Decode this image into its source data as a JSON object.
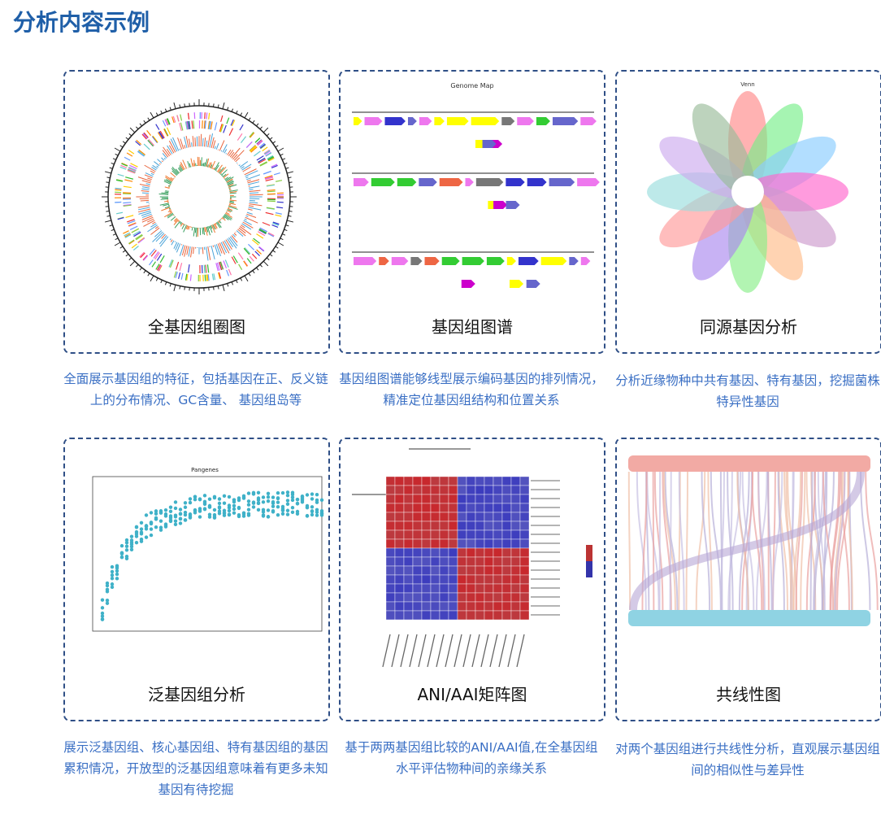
{
  "header": {
    "title": "分析内容示例"
  },
  "cards": [
    {
      "label": "全基因组圈图",
      "description": "全面展示基因组的特征，包括基因在正、反义链上的分布情况、GC含量、 基因组岛等"
    },
    {
      "label": "基因组图谱",
      "figure_title": "Genome Map",
      "description": "基因组图谱能够线型展示编码基因的排列情况，精准定位基因组结构和位置关系"
    },
    {
      "label": "同源基因分析",
      "figure_title": "Venn",
      "description": "分析近缘物种中共有基因、特有基因，挖掘菌株特异性基因"
    },
    {
      "label": "泛基因组分析",
      "figure_title": "Pangenes",
      "description": "展示泛基因组、核心基因组、特有基因组的基因累积情况，开放型的泛基因组意味着有更多未知基因有待挖掘"
    },
    {
      "label": "ANI/AAI矩阵图",
      "description": "基于两两基因组比较的ANI/AAI值,在全基因组水平评估物种间的亲缘关系"
    },
    {
      "label": "共线性图",
      "description": "对两个基因组进行共线性分析，直观展示基因组间的相似性与差异性"
    }
  ]
}
